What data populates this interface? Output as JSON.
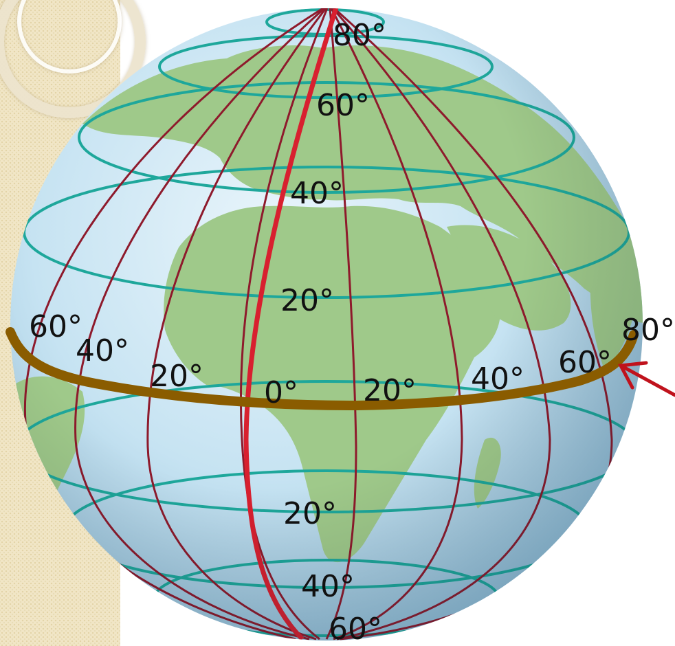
{
  "labels": {
    "north_80": "80°",
    "north_60": "60°",
    "north_40": "40°",
    "north_20": "20°",
    "west_60": "60°",
    "west_40": "40°",
    "west_20": "20°",
    "prime_0": "0°",
    "east_20": "20°",
    "east_40": "40°",
    "east_60": "60°",
    "east_80": "80°",
    "south_20": "20°",
    "south_40": "40°",
    "south_60": "60°"
  },
  "colors": {
    "ocean": "#c6e3f2",
    "land": "#9fc98a",
    "parallel": "#1ea79b",
    "meridian": "#8e1a2c",
    "prime_meridian": "#d8202f",
    "highlight_band": "#8a5c00",
    "pointer_arrow": "#c0121c",
    "side_panel": "#f1e6c6"
  }
}
